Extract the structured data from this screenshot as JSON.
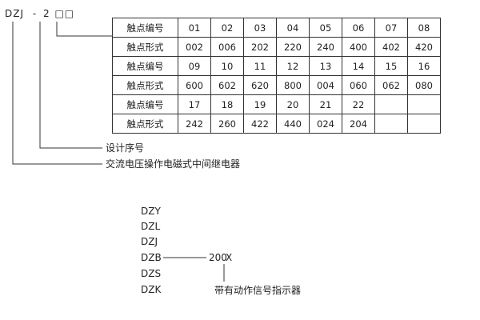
{
  "model_code": {
    "prefix": "DZJ",
    "dash": "-",
    "digit": "2",
    "boxes": "□□"
  },
  "contact_table": {
    "rows": [
      [
        "触点编号",
        "01",
        "02",
        "03",
        "04",
        "05",
        "06",
        "07",
        "08"
      ],
      [
        "触点形式",
        "002",
        "006",
        "202",
        "220",
        "240",
        "400",
        "402",
        "420"
      ],
      [
        "触点编号",
        "09",
        "10",
        "11",
        "12",
        "13",
        "14",
        "15",
        "16"
      ],
      [
        "触点形式",
        "600",
        "602",
        "620",
        "800",
        "004",
        "060",
        "062",
        "080"
      ],
      [
        "触点编号",
        "17",
        "18",
        "19",
        "20",
        "21",
        "22",
        "",
        ""
      ],
      [
        "触点形式",
        "242",
        "260",
        "422",
        "440",
        "024",
        "204",
        "",
        ""
      ]
    ]
  },
  "labels": {
    "design_serial": "设计序号",
    "relay_type": "交流电压操作电磁式中间继电器"
  },
  "series": {
    "models": [
      "DZY",
      "DZL",
      "DZJ",
      "DZB",
      "DZS",
      "DZK"
    ],
    "suffix_number": "200",
    "suffix_letter": "X",
    "suffix_note": "带有动作信号指示器"
  }
}
